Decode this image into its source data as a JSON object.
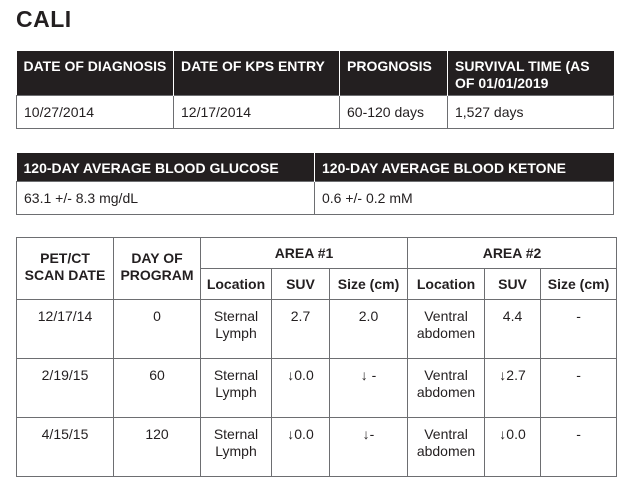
{
  "title": "CALI",
  "info_table": {
    "headers": [
      "DATE OF DIAGNOSIS",
      "DATE OF KPS ENTRY",
      "PROGNOSIS",
      "SURVIVAL TIME (AS OF 01/01/2019"
    ],
    "values": [
      "10/27/2014",
      "12/17/2014",
      "60-120 days",
      "1,527 days"
    ]
  },
  "average_table": {
    "headers": [
      "120-DAY AVERAGE BLOOD GLUCOSE",
      "120-DAY AVERAGE BLOOD KETONE"
    ],
    "values": [
      "63.1 +/- 8.3 mg/dL",
      "0.6 +/- 0.2 mM"
    ]
  },
  "scan_table": {
    "header_scan_date": "PET/CT SCAN DATE",
    "header_day": "DAY OF PROGRAM",
    "header_area1": "AREA #1",
    "header_area2": "AREA #2",
    "subheaders": [
      "Location",
      "SUV",
      "Size (cm)",
      "Location",
      "SUV",
      "Size (cm)"
    ],
    "rows": [
      {
        "date": "12/17/14",
        "day": "0",
        "loc1": "Sternal Lymph",
        "suv1": "2.7",
        "size1": "2.0",
        "loc2": "Ventral abdomen",
        "suv2": "4.4",
        "size2": "-"
      },
      {
        "date": "2/19/15",
        "day": "60",
        "loc1": "Sternal Lymph",
        "suv1": "↓0.0",
        "size1": "↓ -",
        "loc2": "Ventral abdomen",
        "suv2": "↓2.7",
        "size2": "-"
      },
      {
        "date": "4/15/15",
        "day": "120",
        "loc1": "Sternal Lymph",
        "suv1": "↓0.0",
        "size1": "↓-",
        "loc2": "Ventral abdomen",
        "suv2": "↓0.0",
        "size2": "-"
      }
    ]
  }
}
